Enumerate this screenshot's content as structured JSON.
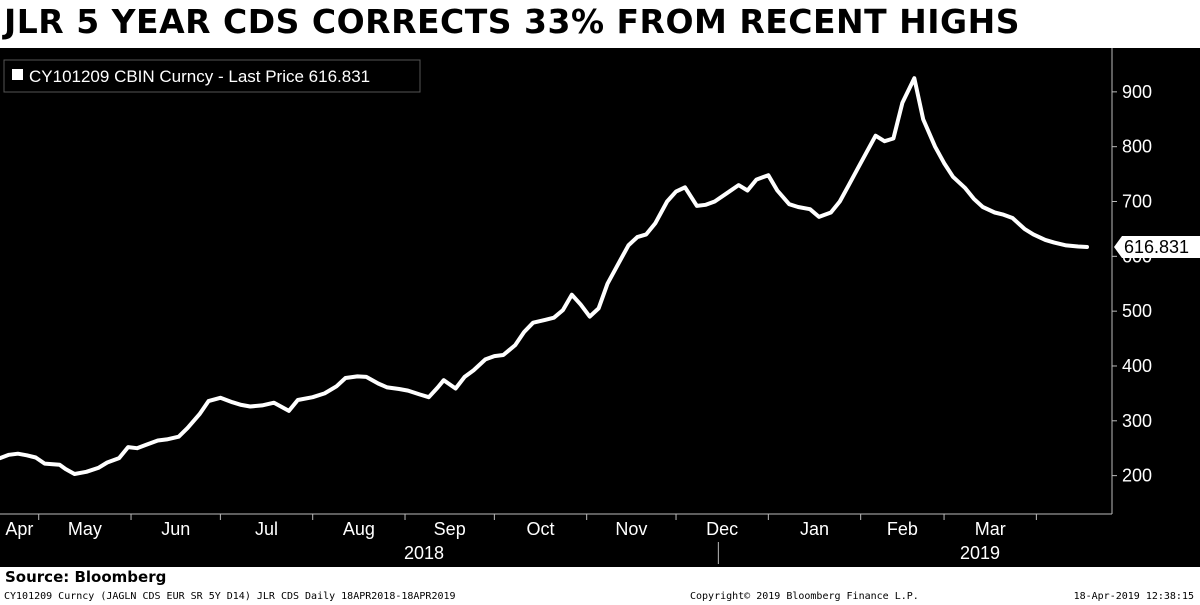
{
  "title": "JLR 5 YEAR CDS CORRECTS 33% FROM RECENT HIGHS",
  "source": "Source: Bloomberg",
  "footer": {
    "left": "CY101209 Curncy (JAGLN CDS EUR SR 5Y D14) JLR CDS  Daily 18APR2018-18APR2019",
    "center": "Copyright© 2019 Bloomberg Finance L.P.",
    "right": "18-Apr-2019 12:38:15"
  },
  "colors": {
    "background": "#000000",
    "line": "#ffffff",
    "text": "#ffffff",
    "header": "#ffffff"
  },
  "chart_data": {
    "type": "line",
    "legend": "CY101209 CBIN Curncy - Last Price 616.831",
    "legend_position": "top-left",
    "last_value_label": "616.831",
    "y_ticks": [
      "200",
      "300",
      "400",
      "500",
      "600",
      "700",
      "800",
      "900"
    ],
    "ylim": [
      130,
      980
    ],
    "x_ticks": [
      "Apr",
      "May",
      "Jun",
      "Jul",
      "Aug",
      "Sep",
      "Oct",
      "Nov",
      "Dec",
      "Jan",
      "Feb",
      "Mar"
    ],
    "year_labels": [
      "2018",
      "2019"
    ],
    "grid": false,
    "series": [
      {
        "name": "CY101209 CBIN Curncy - Last Price",
        "x": [
          "2018-04-18",
          "2018-04-21",
          "2018-04-24",
          "2018-04-27",
          "2018-04-30",
          "2018-05-03",
          "2018-05-08",
          "2018-05-10",
          "2018-05-13",
          "2018-05-17",
          "2018-05-21",
          "2018-05-24",
          "2018-05-28",
          "2018-05-31",
          "2018-06-03",
          "2018-06-06",
          "2018-06-10",
          "2018-06-13",
          "2018-06-17",
          "2018-06-20",
          "2018-06-24",
          "2018-06-27",
          "2018-07-01",
          "2018-07-05",
          "2018-07-08",
          "2018-07-11",
          "2018-07-15",
          "2018-07-19",
          "2018-07-24",
          "2018-07-27",
          "2018-08-01",
          "2018-08-05",
          "2018-08-09",
          "2018-08-12",
          "2018-08-16",
          "2018-08-19",
          "2018-08-23",
          "2018-08-26",
          "2018-08-30",
          "2018-09-02",
          "2018-09-06",
          "2018-09-09",
          "2018-09-12",
          "2018-09-14",
          "2018-09-18",
          "2018-09-21",
          "2018-09-24",
          "2018-09-28",
          "2018-10-01",
          "2018-10-04",
          "2018-10-08",
          "2018-10-11",
          "2018-10-14",
          "2018-10-18",
          "2018-10-21",
          "2018-10-24",
          "2018-10-27",
          "2018-10-30",
          "2018-11-02",
          "2018-11-05",
          "2018-11-08",
          "2018-11-12",
          "2018-11-15",
          "2018-11-18",
          "2018-11-21",
          "2018-11-24",
          "2018-11-28",
          "2018-12-01",
          "2018-12-04",
          "2018-12-08",
          "2018-12-11",
          "2018-12-14",
          "2018-12-18",
          "2018-12-22",
          "2018-12-25",
          "2018-12-28",
          "2019-01-01",
          "2019-01-04",
          "2019-01-08",
          "2019-01-11",
          "2019-01-15",
          "2019-01-18",
          "2019-01-22",
          "2019-01-25",
          "2019-01-28",
          "2019-01-31",
          "2019-02-03",
          "2019-02-06",
          "2019-02-09",
          "2019-02-12",
          "2019-02-15",
          "2019-02-19",
          "2019-02-22",
          "2019-02-26",
          "2019-03-01",
          "2019-03-04",
          "2019-03-08",
          "2019-03-11",
          "2019-03-14",
          "2019-03-18",
          "2019-03-21",
          "2019-03-24",
          "2019-03-28",
          "2019-03-31",
          "2019-04-04",
          "2019-04-07",
          "2019-04-11",
          "2019-04-15",
          "2019-04-18"
        ],
        "values": [
          232,
          238,
          240,
          237,
          233,
          222,
          220,
          212,
          203,
          207,
          214,
          224,
          232,
          252,
          250,
          256,
          264,
          266,
          271,
          287,
          312,
          336,
          342,
          334,
          329,
          326,
          328,
          333,
          318,
          338,
          343,
          350,
          363,
          378,
          381,
          380,
          368,
          361,
          358,
          355,
          348,
          343,
          361,
          374,
          359,
          380,
          392,
          412,
          418,
          420,
          438,
          462,
          479,
          484,
          488,
          502,
          530,
          512,
          490,
          505,
          550,
          590,
          620,
          635,
          640,
          660,
          700,
          718,
          726,
          692,
          694,
          700,
          715,
          730,
          720,
          740,
          748,
          720,
          695,
          690,
          686,
          672,
          680,
          700,
          730,
          760,
          790,
          820,
          810,
          815,
          880,
          925,
          850,
          800,
          770,
          745,
          725,
          705,
          690,
          680,
          676,
          670,
          650,
          640,
          630,
          625,
          620,
          618,
          617
        ]
      }
    ]
  }
}
